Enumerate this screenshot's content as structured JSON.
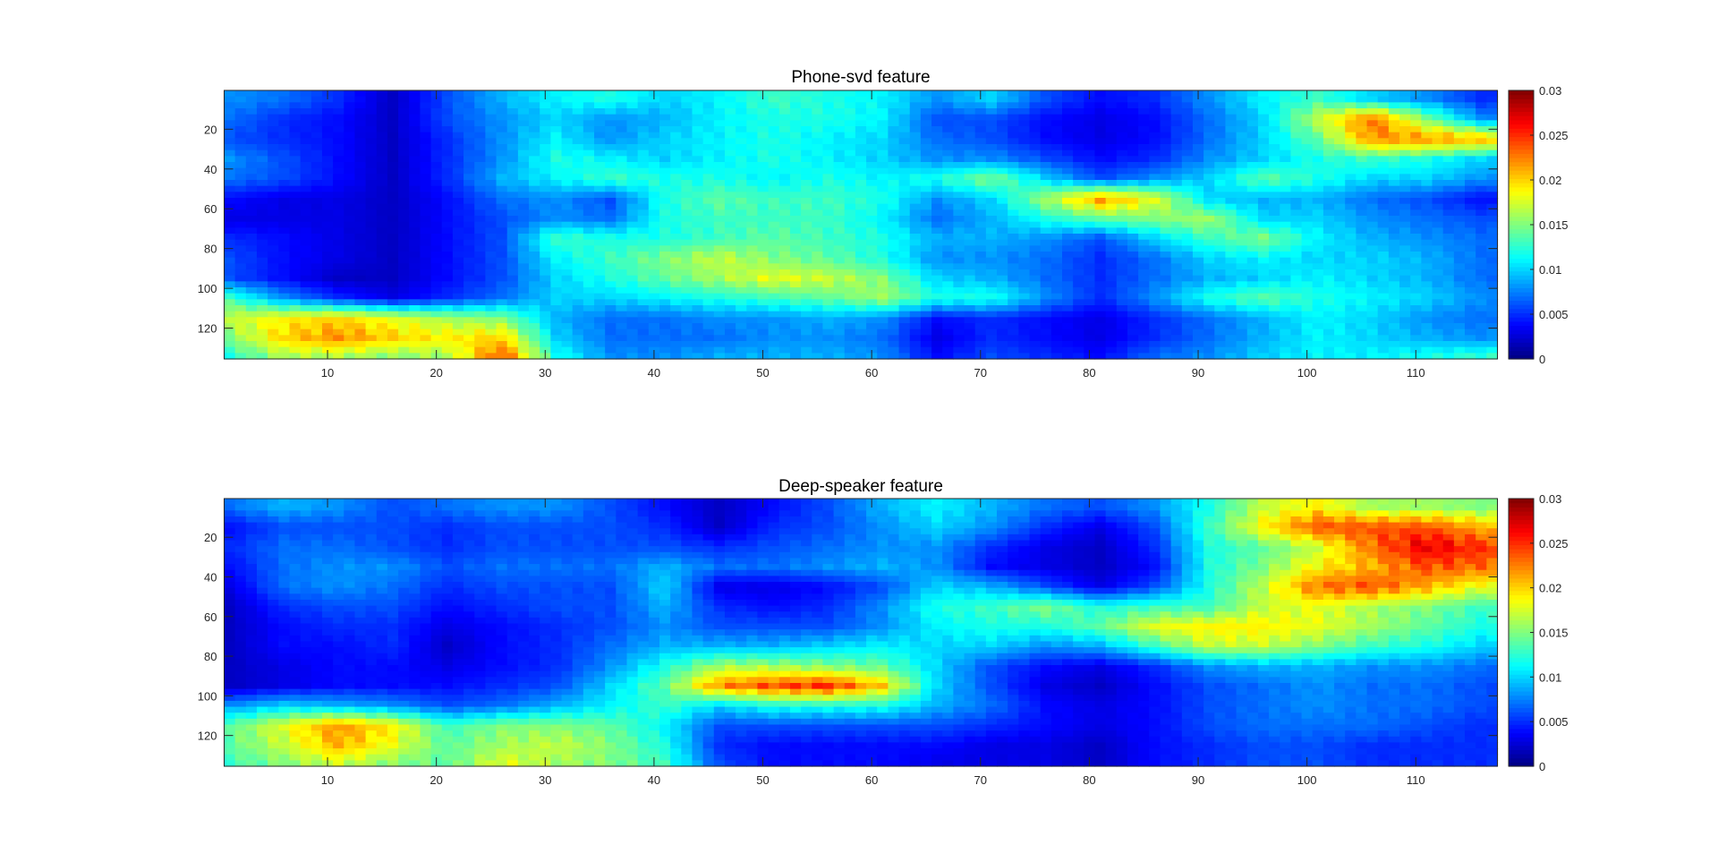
{
  "chart_data": [
    {
      "type": "heatmap",
      "title": "Phone-svd feature",
      "colormap": "jet",
      "xlim": [
        0.5,
        117.5
      ],
      "ylim": [
        0.5,
        135.5
      ],
      "y_reversed": true,
      "xticks": [
        10,
        20,
        30,
        40,
        50,
        60,
        70,
        80,
        90,
        100,
        110
      ],
      "yticks": [
        20,
        40,
        60,
        80,
        100,
        120
      ],
      "colorbar": {
        "range": [
          0,
          0.03
        ],
        "ticks": [
          0,
          0.005,
          0.01,
          0.015,
          0.02,
          0.025,
          0.03
        ],
        "tick_labels": [
          "0",
          "0.005",
          "0.01",
          "0.015",
          "0.02",
          "0.025",
          "0.03"
        ]
      },
      "grid_x": [
        1,
        6,
        11,
        16,
        21,
        26,
        31,
        36,
        41,
        46,
        51,
        56,
        61,
        66,
        71,
        76,
        81,
        86,
        91,
        96,
        101,
        106,
        111,
        116
      ],
      "grid_y": [
        5,
        15,
        25,
        35,
        45,
        55,
        65,
        75,
        85,
        95,
        105,
        115,
        125,
        135
      ],
      "values": [
        [
          0.008,
          0.007,
          0.005,
          0.002,
          0.006,
          0.009,
          0.011,
          0.012,
          0.01,
          0.011,
          0.013,
          0.012,
          0.011,
          0.008,
          0.01,
          0.006,
          0.004,
          0.005,
          0.008,
          0.011,
          0.013,
          0.01,
          0.008,
          0.005
        ],
        [
          0.007,
          0.005,
          0.004,
          0.002,
          0.006,
          0.008,
          0.01,
          0.008,
          0.009,
          0.011,
          0.012,
          0.012,
          0.011,
          0.006,
          0.006,
          0.004,
          0.003,
          0.004,
          0.007,
          0.01,
          0.017,
          0.023,
          0.015,
          0.008
        ],
        [
          0.006,
          0.005,
          0.004,
          0.002,
          0.005,
          0.008,
          0.011,
          0.008,
          0.01,
          0.011,
          0.012,
          0.011,
          0.01,
          0.007,
          0.006,
          0.004,
          0.003,
          0.004,
          0.007,
          0.01,
          0.014,
          0.022,
          0.022,
          0.021
        ],
        [
          0.008,
          0.006,
          0.004,
          0.002,
          0.005,
          0.008,
          0.012,
          0.011,
          0.01,
          0.011,
          0.012,
          0.011,
          0.01,
          0.008,
          0.008,
          0.006,
          0.004,
          0.005,
          0.008,
          0.01,
          0.012,
          0.013,
          0.012,
          0.01
        ],
        [
          0.007,
          0.006,
          0.004,
          0.002,
          0.005,
          0.009,
          0.011,
          0.013,
          0.012,
          0.012,
          0.011,
          0.012,
          0.011,
          0.012,
          0.015,
          0.01,
          0.006,
          0.008,
          0.01,
          0.014,
          0.012,
          0.01,
          0.01,
          0.008
        ],
        [
          0.004,
          0.003,
          0.003,
          0.002,
          0.004,
          0.007,
          0.008,
          0.006,
          0.012,
          0.014,
          0.013,
          0.013,
          0.012,
          0.008,
          0.01,
          0.016,
          0.022,
          0.018,
          0.01,
          0.009,
          0.009,
          0.007,
          0.006,
          0.004
        ],
        [
          0.003,
          0.003,
          0.003,
          0.002,
          0.004,
          0.006,
          0.008,
          0.007,
          0.012,
          0.013,
          0.013,
          0.013,
          0.011,
          0.007,
          0.009,
          0.012,
          0.014,
          0.015,
          0.016,
          0.01,
          0.01,
          0.008,
          0.007,
          0.006
        ],
        [
          0.005,
          0.004,
          0.003,
          0.002,
          0.004,
          0.006,
          0.013,
          0.012,
          0.012,
          0.013,
          0.014,
          0.013,
          0.012,
          0.009,
          0.009,
          0.008,
          0.006,
          0.01,
          0.013,
          0.015,
          0.011,
          0.009,
          0.008,
          0.007
        ],
        [
          0.006,
          0.004,
          0.003,
          0.002,
          0.004,
          0.006,
          0.011,
          0.013,
          0.015,
          0.017,
          0.015,
          0.014,
          0.012,
          0.008,
          0.008,
          0.007,
          0.005,
          0.007,
          0.01,
          0.011,
          0.01,
          0.01,
          0.009,
          0.007
        ],
        [
          0.006,
          0.004,
          0.002,
          0.002,
          0.004,
          0.006,
          0.01,
          0.012,
          0.014,
          0.016,
          0.018,
          0.017,
          0.015,
          0.01,
          0.009,
          0.007,
          0.005,
          0.007,
          0.009,
          0.01,
          0.011,
          0.01,
          0.009,
          0.007
        ],
        [
          0.013,
          0.008,
          0.005,
          0.003,
          0.005,
          0.007,
          0.01,
          0.01,
          0.011,
          0.012,
          0.013,
          0.014,
          0.016,
          0.012,
          0.012,
          0.008,
          0.005,
          0.008,
          0.012,
          0.014,
          0.012,
          0.011,
          0.01,
          0.008
        ],
        [
          0.017,
          0.019,
          0.02,
          0.018,
          0.016,
          0.015,
          0.009,
          0.007,
          0.007,
          0.008,
          0.008,
          0.009,
          0.008,
          0.004,
          0.005,
          0.004,
          0.003,
          0.005,
          0.007,
          0.009,
          0.011,
          0.01,
          0.008,
          0.007
        ],
        [
          0.015,
          0.02,
          0.022,
          0.02,
          0.019,
          0.02,
          0.01,
          0.007,
          0.007,
          0.007,
          0.008,
          0.008,
          0.007,
          0.003,
          0.005,
          0.004,
          0.003,
          0.005,
          0.007,
          0.009,
          0.011,
          0.01,
          0.009,
          0.008
        ],
        [
          0.012,
          0.016,
          0.016,
          0.015,
          0.016,
          0.024,
          0.012,
          0.008,
          0.008,
          0.009,
          0.009,
          0.009,
          0.008,
          0.004,
          0.006,
          0.005,
          0.004,
          0.007,
          0.008,
          0.01,
          0.011,
          0.011,
          0.012,
          0.013
        ]
      ]
    },
    {
      "type": "heatmap",
      "title": "Deep-speaker feature",
      "colormap": "jet",
      "xlim": [
        0.5,
        117.5
      ],
      "ylim": [
        0.5,
        135.5
      ],
      "y_reversed": true,
      "xticks": [
        10,
        20,
        30,
        40,
        50,
        60,
        70,
        80,
        90,
        100,
        110
      ],
      "yticks": [
        20,
        40,
        60,
        80,
        100,
        120
      ],
      "colorbar": {
        "range": [
          0,
          0.03
        ],
        "ticks": [
          0,
          0.005,
          0.01,
          0.015,
          0.02,
          0.025,
          0.03
        ],
        "tick_labels": [
          "0",
          "0.005",
          "0.01",
          "0.015",
          "0.02",
          "0.025",
          "0.03"
        ]
      },
      "grid_x": [
        1,
        6,
        11,
        16,
        21,
        26,
        31,
        36,
        41,
        46,
        51,
        56,
        61,
        66,
        71,
        76,
        81,
        86,
        91,
        96,
        101,
        106,
        111,
        116
      ],
      "grid_y": [
        5,
        15,
        25,
        35,
        45,
        55,
        65,
        75,
        85,
        95,
        105,
        115,
        125,
        135
      ],
      "values": [
        [
          0.007,
          0.009,
          0.008,
          0.006,
          0.007,
          0.008,
          0.008,
          0.006,
          0.004,
          0.002,
          0.004,
          0.006,
          0.009,
          0.011,
          0.009,
          0.007,
          0.006,
          0.008,
          0.012,
          0.017,
          0.019,
          0.016,
          0.016,
          0.015
        ],
        [
          0.004,
          0.006,
          0.006,
          0.006,
          0.005,
          0.006,
          0.006,
          0.006,
          0.005,
          0.002,
          0.005,
          0.006,
          0.008,
          0.01,
          0.008,
          0.005,
          0.003,
          0.006,
          0.013,
          0.019,
          0.024,
          0.024,
          0.024,
          0.021
        ],
        [
          0.005,
          0.007,
          0.007,
          0.006,
          0.005,
          0.006,
          0.006,
          0.006,
          0.006,
          0.005,
          0.006,
          0.007,
          0.008,
          0.008,
          0.005,
          0.003,
          0.002,
          0.005,
          0.012,
          0.014,
          0.017,
          0.023,
          0.027,
          0.025
        ],
        [
          0.004,
          0.007,
          0.008,
          0.008,
          0.006,
          0.007,
          0.007,
          0.007,
          0.009,
          0.007,
          0.007,
          0.008,
          0.009,
          0.008,
          0.004,
          0.003,
          0.002,
          0.004,
          0.012,
          0.015,
          0.019,
          0.021,
          0.024,
          0.023
        ],
        [
          0.003,
          0.007,
          0.008,
          0.007,
          0.005,
          0.006,
          0.006,
          0.006,
          0.01,
          0.003,
          0.003,
          0.004,
          0.006,
          0.01,
          0.009,
          0.006,
          0.003,
          0.006,
          0.012,
          0.017,
          0.023,
          0.024,
          0.021,
          0.018
        ],
        [
          0.002,
          0.005,
          0.006,
          0.006,
          0.004,
          0.005,
          0.006,
          0.006,
          0.009,
          0.005,
          0.004,
          0.005,
          0.008,
          0.012,
          0.013,
          0.015,
          0.012,
          0.013,
          0.013,
          0.017,
          0.018,
          0.016,
          0.015,
          0.013
        ],
        [
          0.002,
          0.004,
          0.005,
          0.005,
          0.003,
          0.004,
          0.005,
          0.006,
          0.008,
          0.006,
          0.006,
          0.006,
          0.008,
          0.011,
          0.012,
          0.012,
          0.014,
          0.018,
          0.019,
          0.019,
          0.018,
          0.016,
          0.014,
          0.012
        ],
        [
          0.002,
          0.004,
          0.004,
          0.005,
          0.002,
          0.004,
          0.005,
          0.007,
          0.009,
          0.009,
          0.009,
          0.01,
          0.011,
          0.01,
          0.01,
          0.008,
          0.009,
          0.013,
          0.017,
          0.017,
          0.015,
          0.013,
          0.012,
          0.01
        ],
        [
          0.002,
          0.003,
          0.004,
          0.004,
          0.003,
          0.004,
          0.005,
          0.008,
          0.012,
          0.016,
          0.016,
          0.015,
          0.014,
          0.01,
          0.006,
          0.004,
          0.003,
          0.005,
          0.008,
          0.009,
          0.009,
          0.008,
          0.008,
          0.007
        ],
        [
          0.002,
          0.003,
          0.004,
          0.004,
          0.004,
          0.005,
          0.006,
          0.01,
          0.014,
          0.022,
          0.024,
          0.025,
          0.02,
          0.01,
          0.006,
          0.003,
          0.002,
          0.004,
          0.006,
          0.007,
          0.008,
          0.007,
          0.007,
          0.006
        ],
        [
          0.008,
          0.01,
          0.009,
          0.008,
          0.006,
          0.007,
          0.009,
          0.011,
          0.013,
          0.01,
          0.012,
          0.012,
          0.012,
          0.009,
          0.007,
          0.004,
          0.003,
          0.004,
          0.006,
          0.007,
          0.008,
          0.007,
          0.007,
          0.006
        ],
        [
          0.014,
          0.018,
          0.022,
          0.019,
          0.013,
          0.015,
          0.015,
          0.014,
          0.011,
          0.006,
          0.006,
          0.006,
          0.006,
          0.006,
          0.005,
          0.004,
          0.003,
          0.004,
          0.006,
          0.007,
          0.007,
          0.007,
          0.006,
          0.005
        ],
        [
          0.014,
          0.017,
          0.021,
          0.018,
          0.014,
          0.016,
          0.017,
          0.015,
          0.012,
          0.005,
          0.004,
          0.004,
          0.004,
          0.004,
          0.003,
          0.003,
          0.002,
          0.004,
          0.005,
          0.006,
          0.006,
          0.005,
          0.005,
          0.005
        ],
        [
          0.013,
          0.015,
          0.017,
          0.015,
          0.014,
          0.018,
          0.016,
          0.015,
          0.013,
          0.006,
          0.004,
          0.004,
          0.004,
          0.003,
          0.003,
          0.003,
          0.002,
          0.004,
          0.005,
          0.006,
          0.006,
          0.005,
          0.005,
          0.005
        ]
      ]
    }
  ]
}
